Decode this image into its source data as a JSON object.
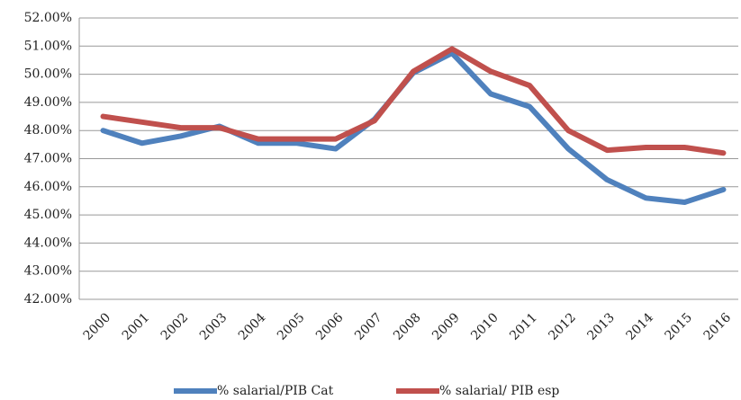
{
  "chart_data": {
    "type": "line",
    "categories": [
      "2000",
      "2001",
      "2002",
      "2003",
      "2004",
      "2005",
      "2006",
      "2007",
      "2008",
      "2009",
      "2010",
      "2011",
      "2012",
      "2013",
      "2014",
      "2015",
      "2016"
    ],
    "series": [
      {
        "name": "% salarial/PIB Cat",
        "color": "#4f81bd",
        "values": [
          48.0,
          47.55,
          47.8,
          48.15,
          47.55,
          47.55,
          47.35,
          48.4,
          50.05,
          50.75,
          49.3,
          48.85,
          47.35,
          46.25,
          45.6,
          45.45,
          45.9
        ]
      },
      {
        "name": "% salarial/ PIB esp",
        "color": "#c0504d",
        "values": [
          48.5,
          48.3,
          48.1,
          48.1,
          47.7,
          47.7,
          47.7,
          48.35,
          50.1,
          50.9,
          50.1,
          49.6,
          48.0,
          47.3,
          47.4,
          47.4,
          47.2
        ]
      }
    ],
    "ylim": [
      42,
      52
    ],
    "yticks": [
      {
        "value": 42,
        "label": "42.00%"
      },
      {
        "value": 43,
        "label": "43.00%"
      },
      {
        "value": 44,
        "label": "44.00%"
      },
      {
        "value": 45,
        "label": "45.00%"
      },
      {
        "value": 46,
        "label": "46.00%"
      },
      {
        "value": 47,
        "label": "47.00%"
      },
      {
        "value": 48,
        "label": "48.00%"
      },
      {
        "value": 49,
        "label": "49.00%"
      },
      {
        "value": 50,
        "label": "50.00%"
      },
      {
        "value": 51,
        "label": "51.00%"
      },
      {
        "value": 52,
        "label": "52.00%"
      }
    ],
    "grid": true,
    "legend": "bottom"
  }
}
